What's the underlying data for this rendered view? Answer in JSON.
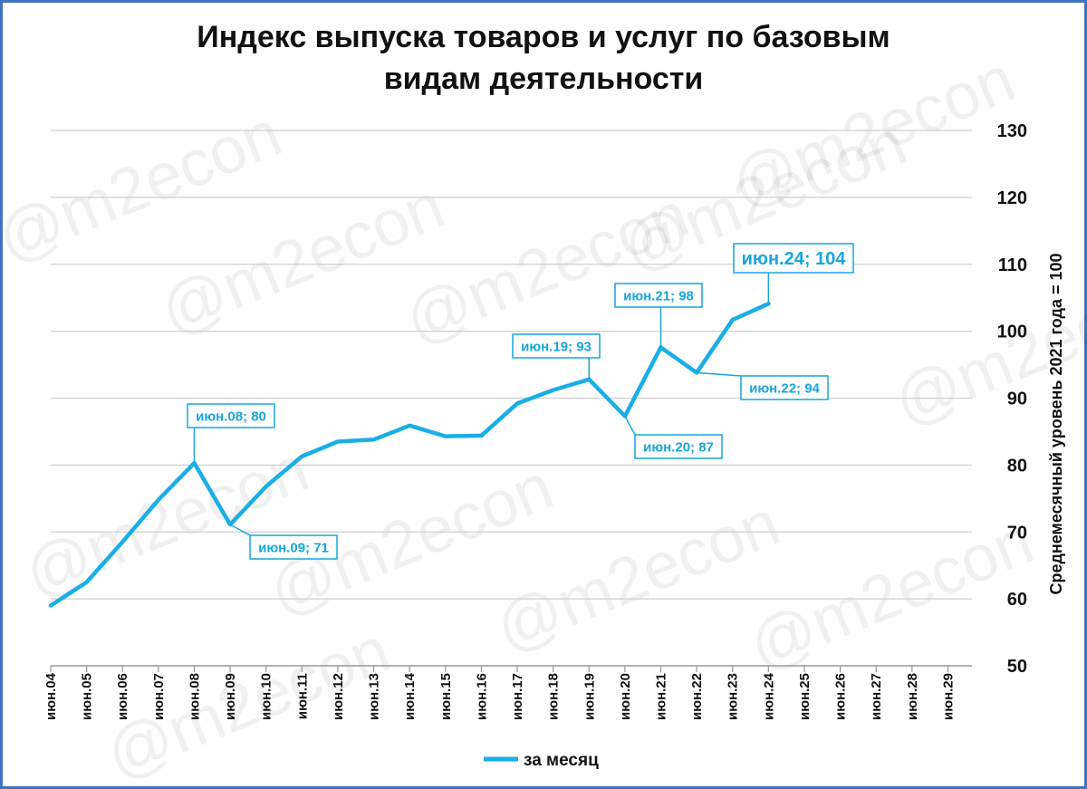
{
  "watermark": "@m2econ",
  "chart_data": {
    "type": "line",
    "title": "Индекс выпуска товаров и услуг по базовым видам деятельности",
    "title_lines": [
      "Индекс выпуска товаров и услуг по базовым",
      "видам деятельности"
    ],
    "ylabel": "Среднемесячный уровень 2021 года  =  100",
    "ylim": [
      50,
      130
    ],
    "yticks": [
      50,
      60,
      70,
      80,
      90,
      100,
      110,
      120,
      130
    ],
    "y_axis_position": "right",
    "grid": true,
    "categories": [
      "июн.04",
      "июн.05",
      "июн.06",
      "июн.07",
      "июн.08",
      "июн.09",
      "июн.10",
      "июн.11",
      "июн.12",
      "июн.13",
      "июн.14",
      "июн.15",
      "июн.16",
      "июн.17",
      "июн.18",
      "июн.19",
      "июн.20",
      "июн.21",
      "июн.22",
      "июн.23",
      "июн.24",
      "июн.25",
      "июн.26",
      "июн.27",
      "июн.28",
      "июн.29"
    ],
    "series": [
      {
        "name": "за месяц",
        "color": "#1aaee6",
        "values": [
          59,
          62.5,
          68.5,
          74.8,
          80.3,
          71.1,
          76.8,
          81.3,
          83.5,
          83.8,
          85.9,
          84.3,
          84.4,
          89.2,
          91.2,
          92.8,
          87.3,
          97.6,
          93.8,
          101.7,
          104.1,
          null,
          null,
          null,
          null,
          null
        ]
      }
    ],
    "annotations": [
      {
        "index": 4,
        "label": "июн.08; 80"
      },
      {
        "index": 5,
        "label": "июн.09; 71"
      },
      {
        "index": 15,
        "label": "июн.19; 93"
      },
      {
        "index": 16,
        "label": "июн.20; 87"
      },
      {
        "index": 17,
        "label": "июн.21; 98"
      },
      {
        "index": 18,
        "label": "июн.22; 94"
      },
      {
        "index": 20,
        "label": "июн.24; 104"
      }
    ],
    "legend": {
      "position": "bottom",
      "entries": [
        "за месяц"
      ]
    }
  }
}
